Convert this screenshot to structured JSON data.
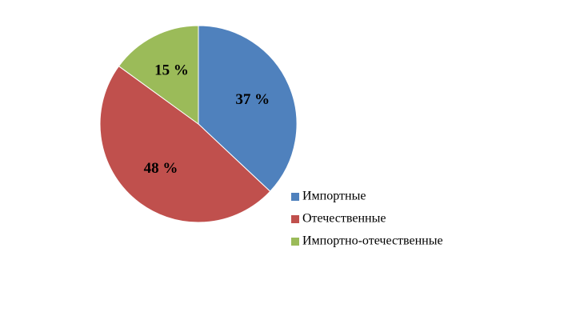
{
  "chart_data": {
    "type": "pie",
    "categories": [
      "Импортные",
      "Отечественные",
      "Импортно-отечественные"
    ],
    "values": [
      37,
      48,
      15
    ],
    "value_labels": [
      "37 %",
      "48 %",
      "15 %"
    ],
    "colors": [
      "#4f81bd",
      "#c0504d",
      "#9bbb59"
    ]
  }
}
